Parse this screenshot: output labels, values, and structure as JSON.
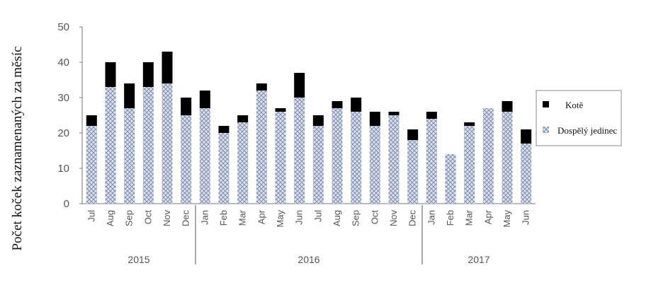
{
  "chart_data": {
    "type": "bar",
    "stacked": true,
    "title": "",
    "ylabel": "Počet koček zaznamenaných za měsíc",
    "xlabel": "",
    "ylim": [
      0,
      50
    ],
    "yticks": [
      "0",
      "10",
      "20",
      "30",
      "40",
      "50"
    ],
    "grid": false,
    "legend_position": "right",
    "categories": [
      "Jul",
      "Aug",
      "Sep",
      "Oct",
      "Nov",
      "Dec",
      "Jan",
      "Feb",
      "Mar",
      "Apr",
      "May",
      "Jun",
      "Jul",
      "Aug",
      "Sep",
      "Oct",
      "Nov",
      "Dec",
      "Jan",
      "Feb",
      "Mar",
      "Apr",
      "May",
      "Jun"
    ],
    "year_groups": [
      {
        "label": "2015",
        "count": 6
      },
      {
        "label": "2016",
        "count": 12
      },
      {
        "label": "2017",
        "count": 6
      }
    ],
    "series": [
      {
        "name": "Dospělý jedinec",
        "color": "#c9d3e3",
        "pattern": "crosshatch",
        "values": [
          22,
          33,
          27,
          33,
          34,
          25,
          27,
          20,
          23,
          32,
          26,
          30,
          22,
          27,
          26,
          22,
          25,
          18,
          24,
          14,
          22,
          27,
          26,
          17
        ]
      },
      {
        "name": "Kotě",
        "color": "#000000",
        "values": [
          3,
          7,
          7,
          7,
          9,
          5,
          5,
          2,
          2,
          2,
          1,
          7,
          3,
          2,
          4,
          4,
          1,
          3,
          2,
          0,
          1,
          0,
          3,
          4
        ]
      }
    ],
    "legend_order": [
      "Kotě",
      "Dospělý jedinec"
    ]
  }
}
